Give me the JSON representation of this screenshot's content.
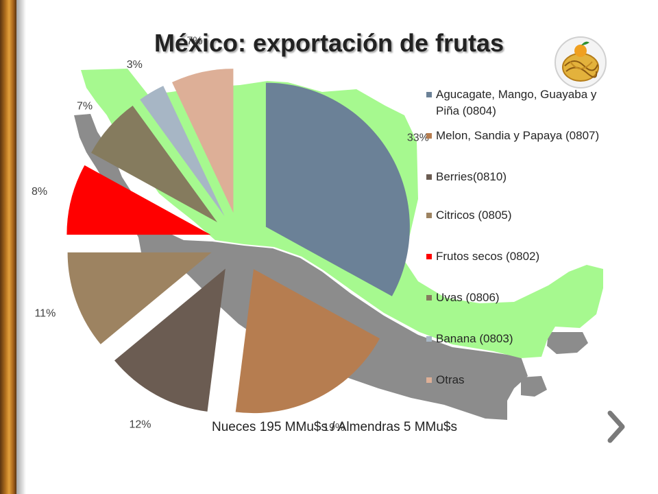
{
  "slide": {
    "title": "México: exportación de frutas",
    "footnote": "Nueces 195 MMu$s / Almendras 5 MMu$s"
  },
  "icons": {
    "logo": "fruit-basket-logo-icon",
    "next": "chevron-right-icon"
  },
  "colors": {
    "map_fill": "#a6f98f",
    "map_shadow": "#8c8c8c",
    "arrow": "#7a7a7a"
  },
  "chart_data": {
    "type": "pie",
    "title": "México: exportación de frutas",
    "unit": "%",
    "legend_position": "right",
    "slices": [
      {
        "label": "Agucagate, Mango, Guayaba y Piña (0804)",
        "value": 33,
        "display": "33%",
        "color": "#6b8197"
      },
      {
        "label": "Melon, Sandia y Papaya (0807)",
        "value": 19,
        "display": "19%",
        "color": "#b67d50"
      },
      {
        "label": "Berries(0810)",
        "value": 12,
        "display": "12%",
        "color": "#6b5c52"
      },
      {
        "label": "Citricos (0805)",
        "value": 11,
        "display": "11%",
        "color": "#9d8361"
      },
      {
        "label": "Frutos secos (0802)",
        "value": 8,
        "display": "8%",
        "color": "#ff0000"
      },
      {
        "label": "Uvas (0806)",
        "value": 7,
        "display": "7%",
        "color": "#857b5e"
      },
      {
        "label": "Banana (0803)",
        "value": 3,
        "display": "3%",
        "color": "#a7b6c5"
      },
      {
        "label": "Otras",
        "value": 7,
        "display": "7%",
        "color": "#ddaf97"
      }
    ]
  }
}
